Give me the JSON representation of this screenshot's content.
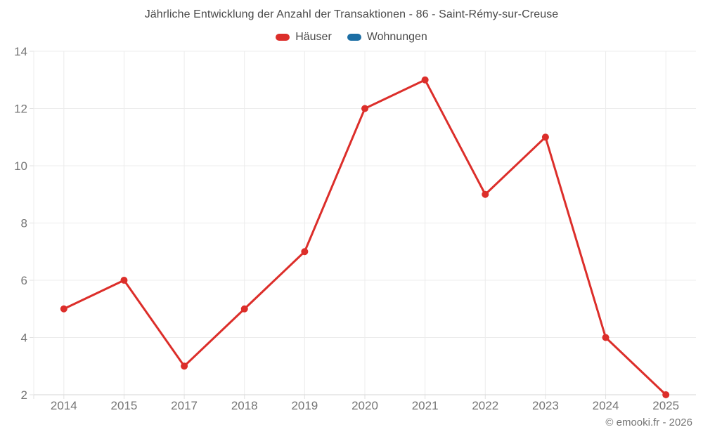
{
  "page": {
    "copyright": "© emooki.fr - 2026"
  },
  "colors": {
    "grid": "#ececec",
    "axis": "#d6d6d6",
    "tick": "#e2e2e2",
    "axis_text": "#757575",
    "title_text": "#4a4a4a",
    "legend_text": "#4a4a4a",
    "copyright_text": "#757575"
  },
  "chart_data": {
    "type": "line",
    "title": "Jährliche Entwicklung der Anzahl der Transaktionen - 86 - Saint-Rémy-sur-Creuse",
    "xlabel": "",
    "ylabel": "",
    "categories": [
      "2014",
      "2015",
      "2017",
      "2018",
      "2019",
      "2020",
      "2021",
      "2022",
      "2023",
      "2024",
      "2025"
    ],
    "series": [
      {
        "name": "Häuser",
        "color": "#dc2e2a",
        "values": [
          5,
          6,
          3,
          5,
          7,
          12,
          13,
          9,
          11,
          4,
          2
        ]
      },
      {
        "name": "Wohnungen",
        "color": "#1c6ea4",
        "values": []
      }
    ],
    "ylim": [
      2,
      14
    ],
    "y_ticks": [
      2,
      4,
      6,
      8,
      10,
      12,
      14
    ],
    "grid": true,
    "legend_position": "top",
    "marker_radius": 5,
    "line_width": 3
  }
}
